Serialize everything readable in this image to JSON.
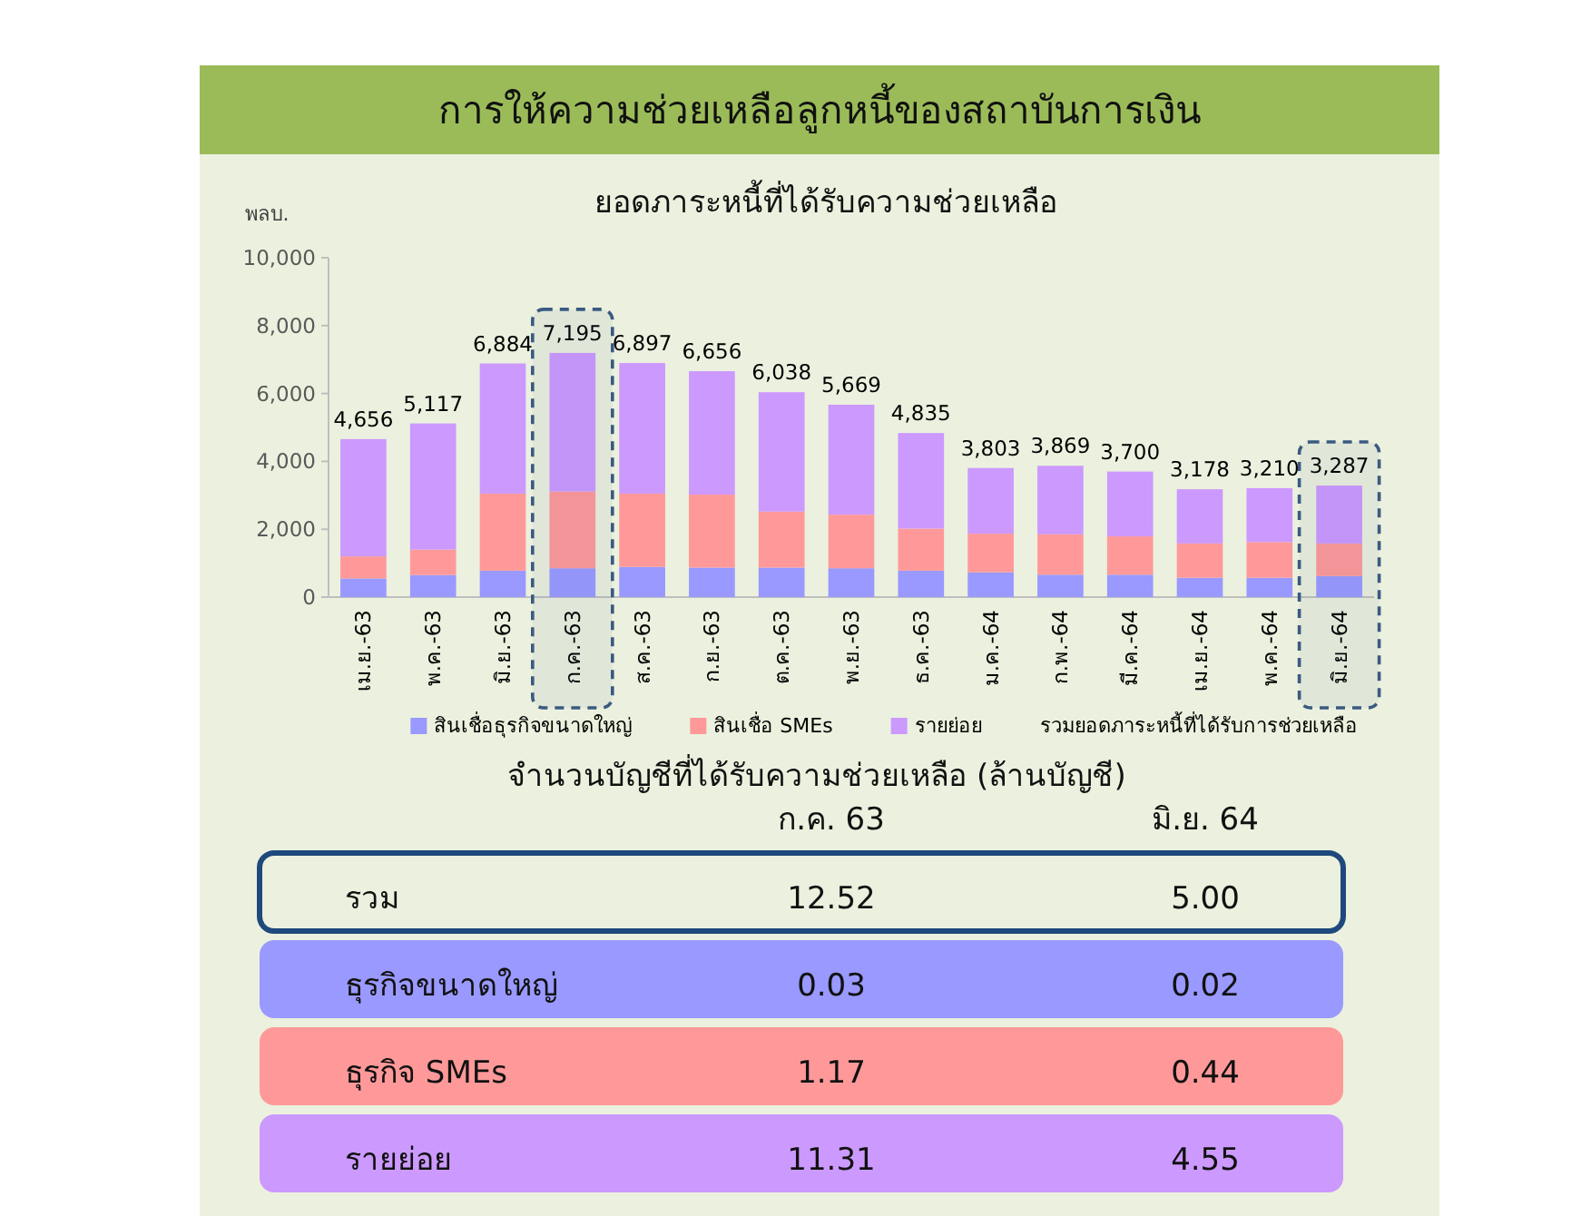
{
  "chart_data": [
    {
      "type": "bar",
      "title": "การให้ความช่วยเหลือลูกหนี้ของสถาบันการเงิน",
      "subtitle": "ยอดภาระหนี้ที่ได้รับความช่วยเหลือ",
      "ylabel": "พลบ.",
      "categories": [
        "เม.ย.-63",
        "พ.ค.-63",
        "มิ.ย.-63",
        "ก.ค.-63",
        "ส.ค.-63",
        "ก.ย.-63",
        "ต.ค.-63",
        "พ.ย.-63",
        "ธ.ค.-63",
        "ม.ค.-64",
        "ก.พ.-64",
        "มี.ค.-64",
        "เม.ย.-64",
        "พ.ค.-64",
        "มิ.ย.-64"
      ],
      "stacked": true,
      "series": [
        {
          "name": "สินเชื่อธุรกิจขนาดใหญ่",
          "color": "#9999ff",
          "values": [
            550,
            650,
            780,
            850,
            890,
            870,
            870,
            850,
            780,
            730,
            660,
            660,
            570,
            570,
            620
          ]
        },
        {
          "name": "สินเชื่อ SMEs",
          "color": "#ff9999",
          "values": [
            650,
            750,
            2270,
            2260,
            2160,
            2150,
            1650,
            1580,
            1240,
            1140,
            1190,
            1130,
            1010,
            1050,
            960
          ]
        },
        {
          "name": "รายย่อย",
          "color": "#cc99ff",
          "values": [
            3456,
            3717,
            3834,
            4085,
            3847,
            3636,
            3518,
            3239,
            2815,
            1933,
            2019,
            1910,
            1598,
            1590,
            1707
          ]
        }
      ],
      "totals": [
        "4,656",
        "5,117",
        "6,884",
        "7,195",
        "6,897",
        "6,656",
        "6,038",
        "5,669",
        "4,835",
        "3,803",
        "3,869",
        "3,700",
        "3,178",
        "3,210",
        "3,287"
      ],
      "ylim": [
        0,
        10000
      ],
      "yticks": [
        0,
        {
          "value": 2000,
          "label": "2,000"
        },
        {
          "value": 4000,
          "label": "4,000"
        },
        {
          "value": 6000,
          "label": "6,000"
        },
        {
          "value": 8000,
          "label": "8,000"
        },
        {
          "value": 10000,
          "label": "10,000"
        }
      ],
      "legend": "bottom",
      "bands": [
        {
          "axis": "x",
          "from": "ก.ค.-63",
          "to": "ก.ค.-63",
          "color": "#3a5a80"
        },
        {
          "axis": "x",
          "from": "มิ.ย.-64",
          "to": "มิ.ย.-64",
          "color": "#3a5a80"
        }
      ],
      "annotations": [
        "รวมยอดภาระหนี้ที่ได้รับการช่วยเหลือ"
      ]
    },
    {
      "type": "other",
      "title": "จำนวนบัญชีที่ได้รับความช่วยเหลือ (ล้านบัญชี)",
      "categories": [
        "ก.ค. 63",
        "มิ.ย. 64"
      ],
      "series": [
        {
          "name": "รวม",
          "values": [
            12.52,
            5.0
          ],
          "value_labels": [
            "12.52",
            "5.00"
          ]
        },
        {
          "name": "ธุรกิจขนาดใหญ่",
          "color": "#9999ff",
          "values": [
            0.03,
            0.02
          ]
        },
        {
          "name": "ธุรกิจ SMEs",
          "color": "#ff9999",
          "values": [
            1.17,
            0.44
          ]
        },
        {
          "name": "รายย่อย",
          "color": "#cc99ff",
          "values": [
            11.31,
            4.55
          ]
        }
      ],
      "data_labels": true
    }
  ]
}
